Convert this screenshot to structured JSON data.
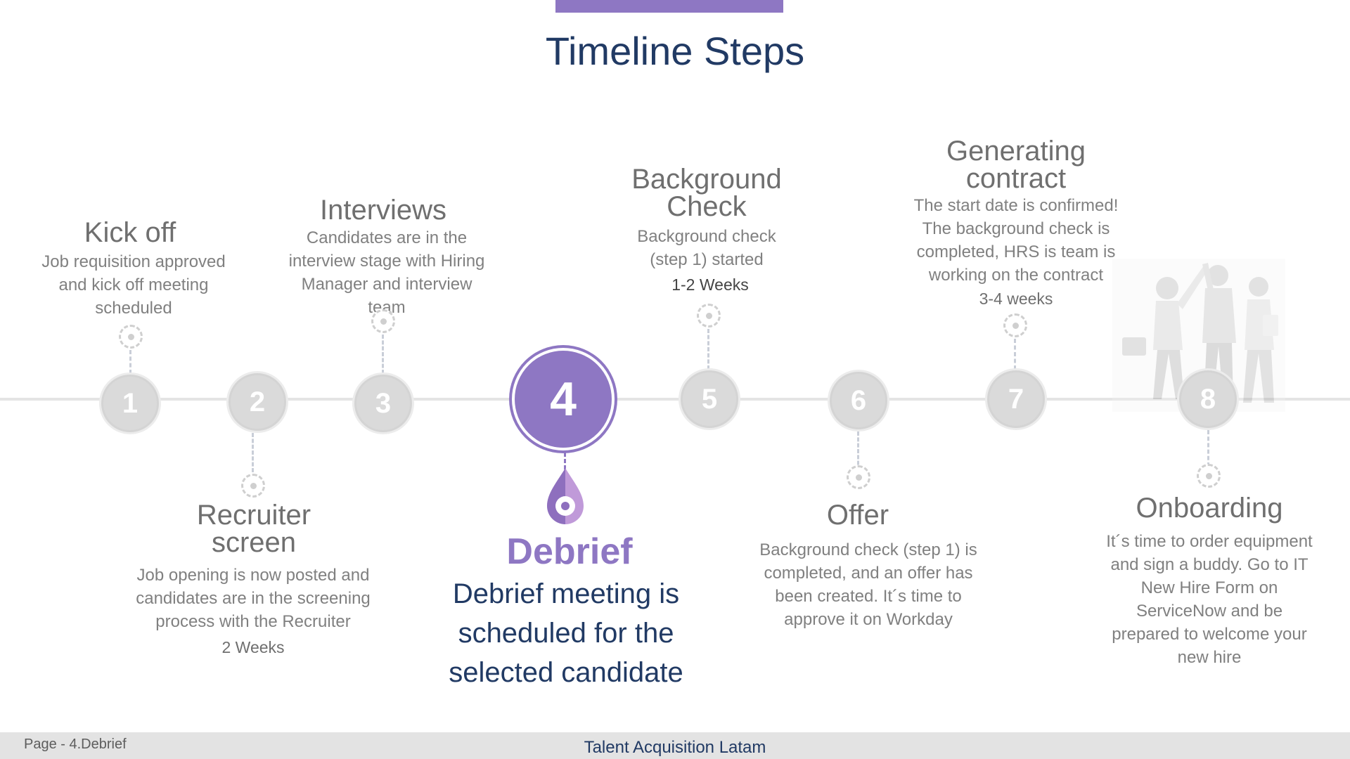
{
  "page": {
    "title": "Timeline Steps"
  },
  "steps": [
    {
      "number": "1",
      "title": "Kick off",
      "description": "Job requisition approved and kick off meeting scheduled",
      "duration": ""
    },
    {
      "number": "2",
      "title": "Recruiter screen",
      "description": "Job opening is now posted and candidates are in the screening process with the Recruiter",
      "duration": "2 Weeks"
    },
    {
      "number": "3",
      "title": "Interviews",
      "description": "Candidates are in the interview stage with Hiring Manager and interview team",
      "duration": ""
    },
    {
      "number": "4",
      "title": "Debrief",
      "description": "Debrief meeting is scheduled for the selected candidate",
      "duration": "",
      "active": true
    },
    {
      "number": "5",
      "title": "Background Check",
      "description": "Background check (step 1) started",
      "duration": "1-2 Weeks"
    },
    {
      "number": "6",
      "title": "Offer",
      "description": "Background check (step 1) is completed, and an offer has been created. It´s time to approve it on Workday",
      "duration": ""
    },
    {
      "number": "7",
      "title": "Generating contract",
      "description": "The start date is confirmed! The background check is completed, HRS is team is working on the contract",
      "duration": "3-4 weeks"
    },
    {
      "number": "8",
      "title": "Onboarding",
      "description": "It´s time to order equipment and sign a buddy. Go to IT New Hire Form on ServiceNow and be prepared to welcome your new hire",
      "duration": ""
    }
  ],
  "footer": {
    "page_label": "Page - 4.Debrief",
    "brand": "Talent Acquisition Latam"
  },
  "colors": {
    "accent": "#8e77c3",
    "title": "#213a64",
    "inactive_circle": "#dadada",
    "muted_text": "#808080"
  },
  "icons": {
    "location_pin": "map-pin-icon",
    "target_dot": "target-dot-icon",
    "illustration": "team-high-five-illustration"
  }
}
